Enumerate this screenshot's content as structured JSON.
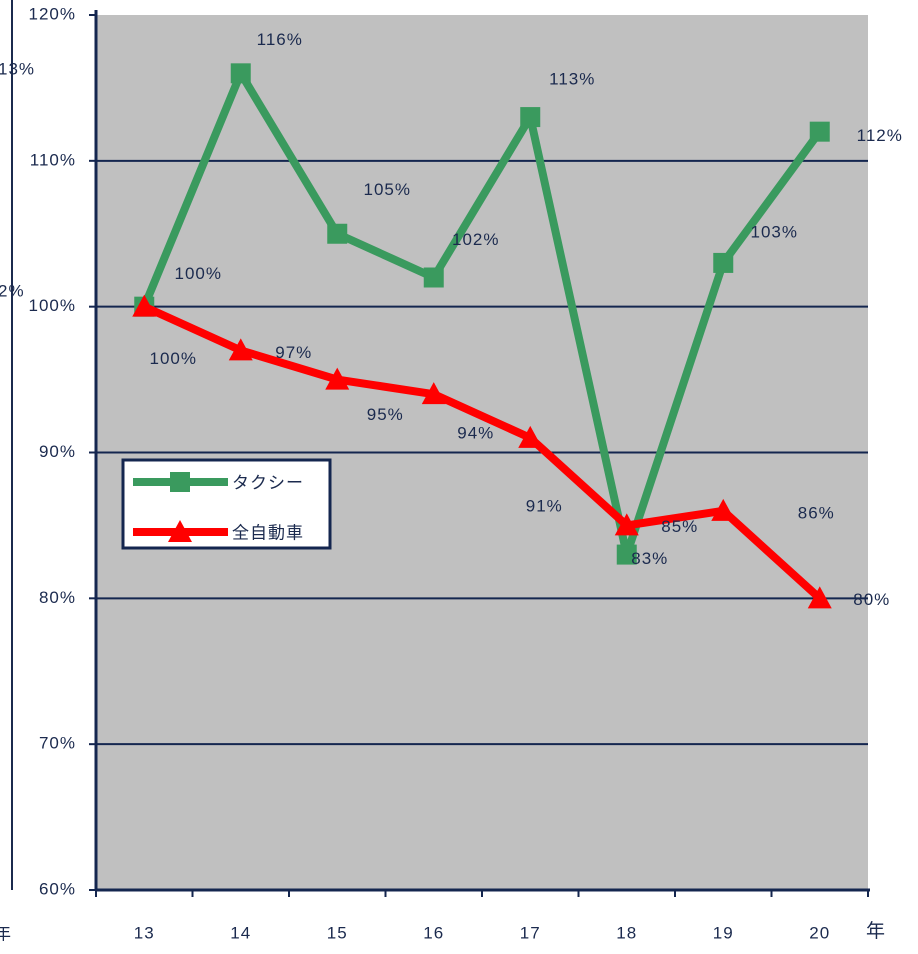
{
  "chart_data": {
    "type": "line",
    "categories": [
      "13",
      "14",
      "15",
      "16",
      "17",
      "18",
      "19",
      "20"
    ],
    "x_unit_label": "年",
    "series": [
      {
        "name": "タクシー",
        "color": "#3a9a5e",
        "marker": "square",
        "values": [
          100,
          116,
          105,
          102,
          113,
          83,
          103,
          112
        ],
        "value_labels": [
          "100%",
          "116%",
          "105%",
          "102%",
          "113%",
          "83%",
          "103%",
          "112%"
        ]
      },
      {
        "name": "全自動車",
        "color": "#ff0000",
        "marker": "triangle",
        "values": [
          100,
          97,
          95,
          94,
          91,
          85,
          86,
          80
        ],
        "value_labels": [
          "100%",
          "97%",
          "95%",
          "94%",
          "91%",
          "85%",
          "86%",
          "80%"
        ]
      }
    ],
    "ylim": [
      60,
      120
    ],
    "yticks": [
      {
        "value": 60,
        "label": "60%"
      },
      {
        "value": 70,
        "label": "70%"
      },
      {
        "value": 80,
        "label": "80%"
      },
      {
        "value": 90,
        "label": "90%"
      },
      {
        "value": 100,
        "label": "100%"
      },
      {
        "value": 110,
        "label": "110%"
      },
      {
        "value": 120,
        "label": "120%"
      }
    ],
    "grid": true,
    "background": "#c0c0c0",
    "cropped_labels": [
      "13%",
      "2%",
      "年"
    ]
  }
}
